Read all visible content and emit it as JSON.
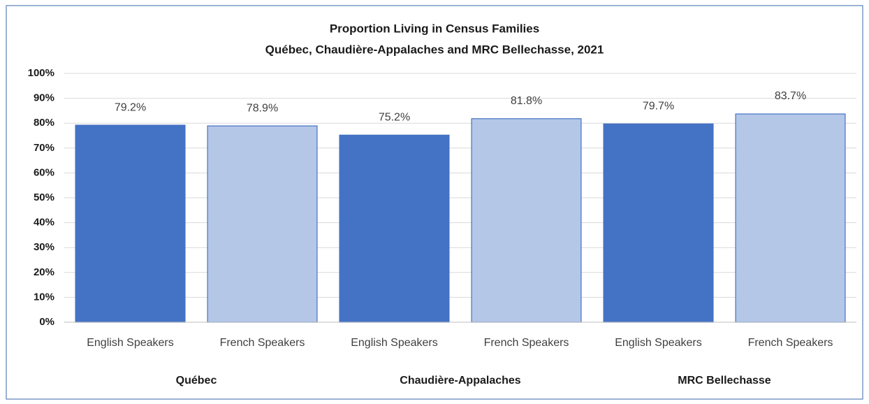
{
  "chart_data": {
    "type": "bar",
    "title": "Proportion Living in Census Families",
    "subtitle": "Québec, Chaudière-Appalaches  and MRC Bellechasse,  2021",
    "categories": [
      "English Speakers",
      "French Speakers",
      "English Speakers",
      "French Speakers",
      "English Speakers",
      "French Speakers"
    ],
    "groups": [
      "Québec",
      "Chaudière-Appalaches",
      "MRC Bellechasse"
    ],
    "values": [
      79.2,
      78.9,
      75.2,
      81.8,
      79.7,
      83.7
    ],
    "value_labels": [
      "79.2%",
      "78.9%",
      "75.2%",
      "81.8%",
      "79.7%",
      "83.7%"
    ],
    "colors": [
      "#4472c4",
      "#b4c7e7",
      "#4472c4",
      "#b4c7e7",
      "#4472c4",
      "#b4c7e7"
    ],
    "ylim": [
      0,
      100
    ],
    "yticks": [
      {
        "value": 0,
        "label": "0%"
      },
      {
        "value": 10,
        "label": "10%"
      },
      {
        "value": 20,
        "label": "20%"
      },
      {
        "value": 30,
        "label": "30%"
      },
      {
        "value": 40,
        "label": "40%"
      },
      {
        "value": 50,
        "label": "50%"
      },
      {
        "value": 60,
        "label": "60%"
      },
      {
        "value": 70,
        "label": "70%"
      },
      {
        "value": 80,
        "label": "80%"
      },
      {
        "value": 90,
        "label": "90%"
      },
      {
        "value": 100,
        "label": "100%"
      }
    ],
    "grid": true
  }
}
